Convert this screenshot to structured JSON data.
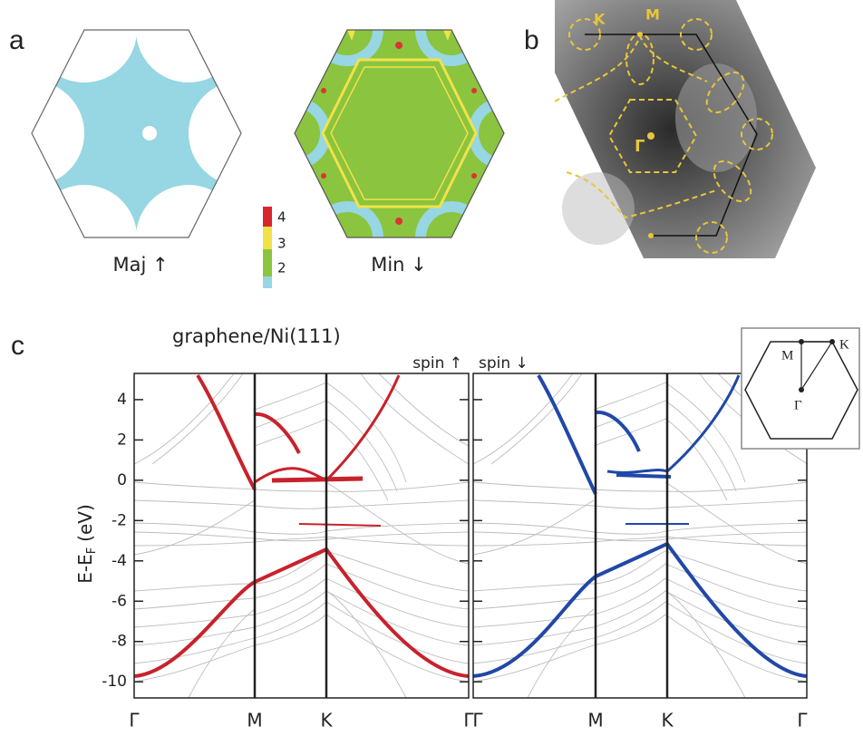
{
  "panels": {
    "a": {
      "label": "a",
      "colorbar_ticks": [
        4,
        3,
        2
      ],
      "left_caption": "Maj ↑",
      "right_caption": "Min ↓"
    },
    "b": {
      "label": "b",
      "points": [
        "K",
        "M",
        "Γ"
      ]
    },
    "c": {
      "label": "c",
      "title": "graphene/Ni(111)",
      "left_title": "spin ↑",
      "right_title": "spin ↓",
      "ylabel": "E-E",
      "ylabel_sub": "F",
      "ylabel_unit": "(eV)",
      "yticks": [
        4,
        2,
        0,
        -2,
        -4,
        -6,
        -8,
        -10
      ],
      "ylim": [
        -10.8,
        5.3
      ],
      "xlabels": [
        "Γ",
        "M",
        "K",
        "Γ",
        "Γ",
        "M",
        "K",
        "Γ"
      ],
      "inset": [
        "M",
        "K",
        "Γ"
      ]
    }
  }
}
